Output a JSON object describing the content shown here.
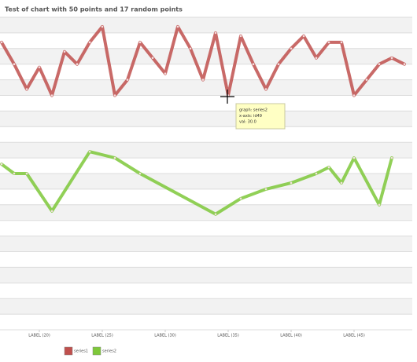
{
  "chart_data": {
    "type": "line",
    "title": "Test of chart with 50 points and 17 random points",
    "xlim": [
      17,
      49
    ],
    "xticks": [
      {
        "value": 20,
        "label": "LABEL (20)"
      },
      {
        "value": 25,
        "label": "LABEL (25)"
      },
      {
        "value": 30,
        "label": "LABEL (30)"
      },
      {
        "value": 35,
        "label": "LABEL (35)"
      },
      {
        "value": 40,
        "label": "LABEL (40)"
      },
      {
        "value": 45,
        "label": "LABEL (45)"
      }
    ],
    "ylim": [
      0,
      100
    ],
    "yticks": [
      0,
      5,
      10,
      15,
      20,
      25,
      30,
      35,
      40,
      45,
      50,
      55,
      60,
      65,
      70,
      75,
      80,
      85,
      90,
      95,
      100
    ],
    "grid": true,
    "legend": "bottom-left",
    "series": [
      {
        "name": "series1",
        "color": "#c0504d",
        "x": [
          17,
          18,
          19,
          20,
          21,
          22,
          23,
          24,
          25,
          26,
          27,
          28,
          29,
          30,
          31,
          32,
          33,
          34,
          35,
          36,
          37,
          38,
          39,
          40,
          41,
          42,
          43,
          44,
          45,
          46,
          47,
          48,
          49
        ],
        "values": [
          92,
          85,
          77,
          84,
          75,
          89,
          85,
          92,
          97,
          75,
          80,
          92,
          87,
          82,
          97,
          90,
          80,
          95,
          75,
          94,
          85,
          77,
          85,
          90,
          94,
          87,
          92,
          92,
          75,
          80,
          85,
          87,
          85
        ]
      },
      {
        "name": "series2",
        "color": "#7ec83a",
        "x": [
          17,
          18,
          19,
          21,
          24,
          26,
          28,
          34,
          36,
          38,
          40,
          42,
          43,
          44,
          45,
          47,
          48
        ],
        "values": [
          53,
          50,
          50,
          38,
          57,
          55,
          50,
          37,
          42,
          45,
          47,
          50,
          52,
          47,
          55,
          40,
          55
        ]
      }
    ],
    "annotations": [
      "graph: series2",
      "x-axis: id49",
      "val: 30.0"
    ]
  }
}
